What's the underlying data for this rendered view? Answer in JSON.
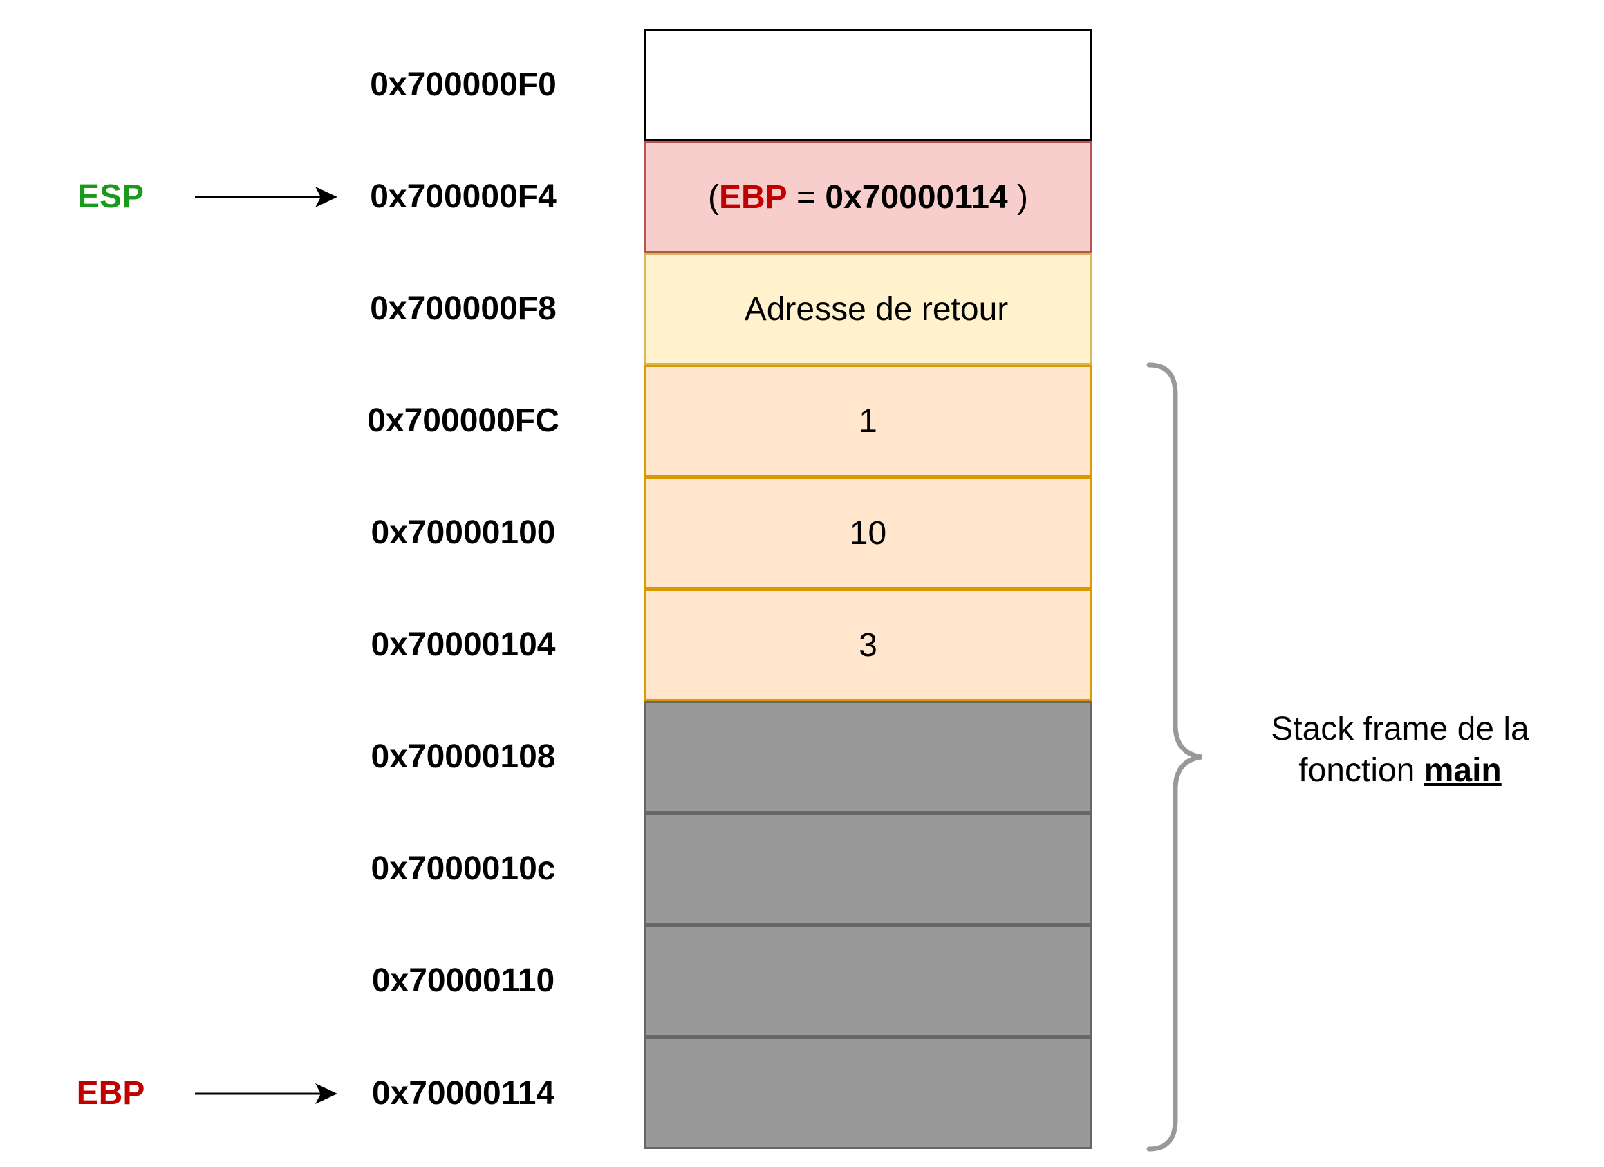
{
  "registers": {
    "esp": {
      "label": "ESP",
      "color": "#1a9a1a"
    },
    "ebp": {
      "label": "EBP",
      "color": "#c00000"
    }
  },
  "stack": {
    "cells": [
      {
        "address": "0x700000F0",
        "content": "",
        "style": "empty"
      },
      {
        "address": "0x700000F4",
        "content": "",
        "style": "saved-ebp"
      },
      {
        "address": "0x700000F8",
        "content": "Adresse de retour",
        "style": "return"
      },
      {
        "address": "0x700000FC",
        "content": "1",
        "style": "local"
      },
      {
        "address": "0x70000100",
        "content": "10",
        "style": "local"
      },
      {
        "address": "0x70000104",
        "content": "3",
        "style": "local"
      },
      {
        "address": "0x70000108",
        "content": "",
        "style": "frame"
      },
      {
        "address": "0x7000010c",
        "content": "",
        "style": "frame"
      },
      {
        "address": "0x70000110",
        "content": "",
        "style": "frame"
      },
      {
        "address": "0x70000114",
        "content": "",
        "style": "frame"
      }
    ],
    "saved_ebp": {
      "open": "(",
      "reg": "EBP",
      "equals": " = ",
      "value": "0x70000114",
      "close": " )"
    }
  },
  "frame_label": {
    "line1": "Stack frame de la",
    "line2_prefix": "fonction ",
    "function_name": "main"
  },
  "colors": {
    "empty_fill": "#ffffff",
    "empty_border": "#000000",
    "saved_ebp_fill": "#f8cecc",
    "saved_ebp_border": "#b85450",
    "return_fill": "#fff2cc",
    "return_border": "#d6b656",
    "local_fill": "#ffe6cc",
    "local_border": "#d79b00",
    "frame_fill": "#999999",
    "frame_border": "#666666",
    "brace": "#999999"
  }
}
